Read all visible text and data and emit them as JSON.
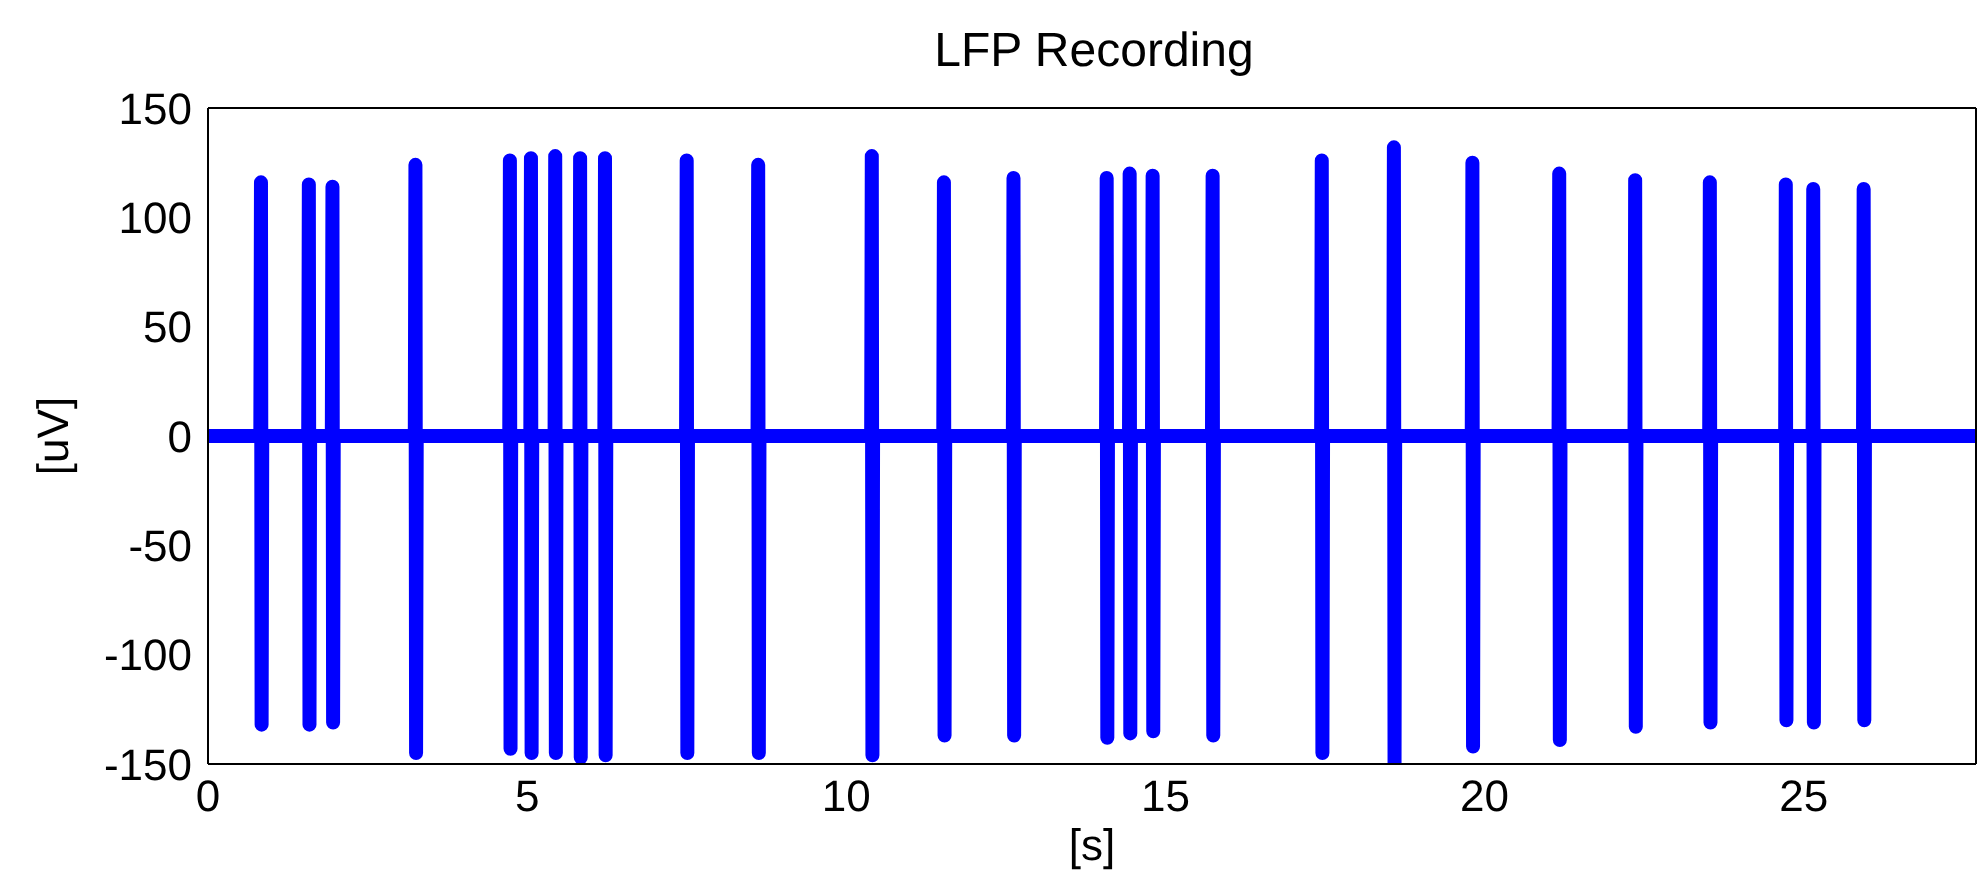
{
  "chart_data": {
    "type": "line",
    "title": "LFP Recording",
    "xlabel": "[s]",
    "ylabel": "[uV]",
    "x": [
      0,
      0.82,
      0.83,
      0.84,
      0.85,
      1.57,
      1.58,
      1.59,
      1.6,
      1.94,
      1.95,
      1.96,
      1.97,
      3.24,
      3.25,
      3.26,
      3.27,
      4.72,
      4.73,
      4.74,
      4.75,
      5.05,
      5.06,
      5.07,
      5.08,
      5.43,
      5.44,
      5.45,
      5.46,
      5.82,
      5.83,
      5.84,
      5.85,
      6.21,
      6.22,
      6.23,
      6.24,
      7.49,
      7.5,
      7.51,
      7.52,
      8.61,
      8.62,
      8.63,
      8.64,
      10.39,
      10.4,
      10.41,
      10.42,
      11.52,
      11.53,
      11.54,
      11.55,
      12.61,
      12.62,
      12.63,
      12.64,
      14.07,
      14.08,
      14.09,
      14.1,
      14.43,
      14.44,
      14.45,
      14.46,
      14.79,
      14.8,
      14.81,
      14.82,
      15.73,
      15.74,
      15.75,
      15.76,
      17.44,
      17.45,
      17.46,
      17.47,
      18.57,
      18.58,
      18.59,
      18.6,
      19.8,
      19.81,
      19.82,
      19.83,
      21.16,
      21.17,
      21.18,
      21.19,
      22.35,
      22.36,
      22.37,
      22.38,
      23.52,
      23.53,
      23.54,
      23.55,
      24.71,
      24.72,
      24.73,
      24.74,
      25.14,
      25.15,
      25.16,
      25.17,
      25.93,
      25.94,
      25.95,
      25.96,
      27.7
    ],
    "series": [
      {
        "color": "#0000ff",
        "values": [
          0,
          0,
          116,
          -132,
          0,
          0,
          115,
          -132,
          0,
          0,
          114,
          -131,
          0,
          0,
          124,
          -145,
          0,
          0,
          126,
          -143,
          0,
          0,
          127,
          -145,
          0,
          0,
          128,
          -145,
          0,
          0,
          127,
          -147,
          0,
          0,
          127,
          -146,
          0,
          0,
          126,
          -145,
          0,
          0,
          124,
          -145,
          0,
          0,
          128,
          -146,
          0,
          0,
          116,
          -137,
          0,
          0,
          118,
          -137,
          0,
          0,
          118,
          -138,
          0,
          0,
          120,
          -136,
          0,
          0,
          119,
          -135,
          0,
          0,
          119,
          -137,
          0,
          0,
          126,
          -145,
          0,
          0,
          132,
          -150,
          0,
          0,
          125,
          -142,
          0,
          0,
          120,
          -139,
          0,
          0,
          117,
          -133,
          0,
          0,
          116,
          -131,
          0,
          0,
          115,
          -130,
          0,
          0,
          113,
          -131,
          0,
          0,
          113,
          -130,
          0,
          0
        ]
      }
    ],
    "xlim": [
      0,
      27.7
    ],
    "xticks": [
      0,
      5,
      10,
      15,
      20,
      25
    ],
    "ylim": [
      -150,
      150
    ],
    "yticks": [
      -150,
      -100,
      -50,
      0,
      50,
      100,
      150
    ],
    "grid": false,
    "legend": false,
    "marker": "none",
    "line_style": "solid"
  }
}
